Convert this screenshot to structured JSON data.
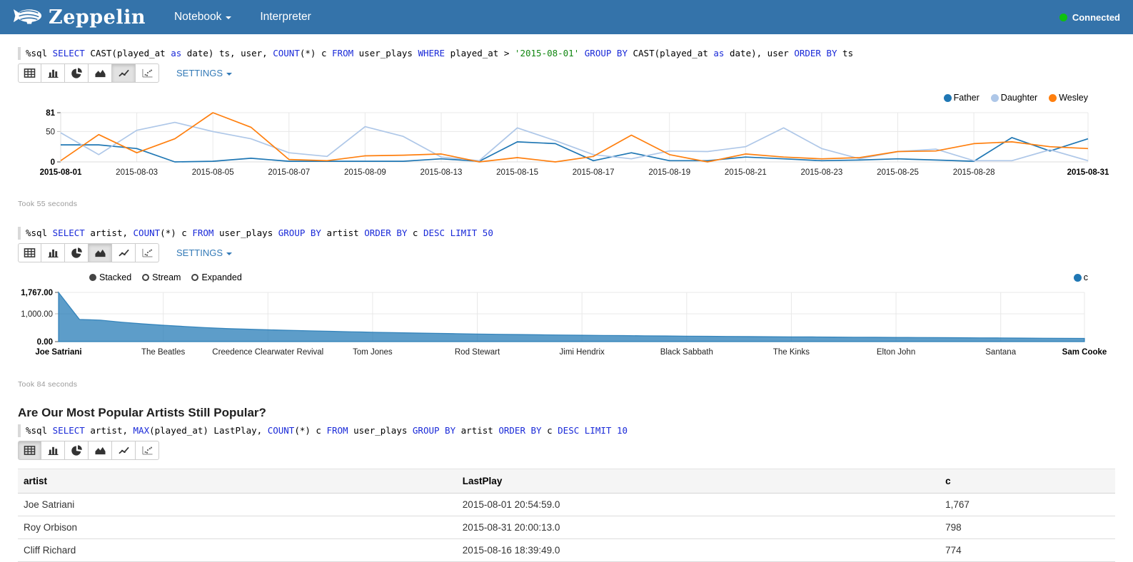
{
  "navbar": {
    "brand": "Zeppelin",
    "items": [
      {
        "label": "Notebook",
        "has_caret": true
      },
      {
        "label": "Interpreter",
        "has_caret": false
      }
    ],
    "status": {
      "label": "Connected",
      "color": "#0ec10e"
    }
  },
  "chart_type_buttons": [
    "table",
    "bar-chart",
    "pie-chart",
    "area-chart",
    "line-chart",
    "scatter-chart"
  ],
  "paragraphs": [
    {
      "query_tokens": [
        {
          "t": "%sql ",
          "c": "plain"
        },
        {
          "t": "SELECT",
          "c": "kw"
        },
        {
          "t": " CAST(played_at ",
          "c": "plain"
        },
        {
          "t": "as",
          "c": "kw"
        },
        {
          "t": " date) ts, user, ",
          "c": "plain"
        },
        {
          "t": "COUNT",
          "c": "kw"
        },
        {
          "t": "(*) c ",
          "c": "plain"
        },
        {
          "t": "FROM",
          "c": "kw"
        },
        {
          "t": " user_plays ",
          "c": "plain"
        },
        {
          "t": "WHERE",
          "c": "kw"
        },
        {
          "t": " played_at > ",
          "c": "plain"
        },
        {
          "t": "'2015-08-01'",
          "c": "str"
        },
        {
          "t": " ",
          "c": "plain"
        },
        {
          "t": "GROUP BY",
          "c": "kw"
        },
        {
          "t": " CAST(played_at ",
          "c": "plain"
        },
        {
          "t": "as",
          "c": "kw"
        },
        {
          "t": " date), user ",
          "c": "plain"
        },
        {
          "t": "ORDER BY",
          "c": "kw"
        },
        {
          "t": " ts",
          "c": "plain"
        }
      ],
      "toolbar": {
        "selected": "line-chart",
        "settings_label": "SETTINGS",
        "has_settings": true
      },
      "took": "Took 55 seconds",
      "chart_index": 0
    },
    {
      "query_tokens": [
        {
          "t": "%sql ",
          "c": "plain"
        },
        {
          "t": "SELECT",
          "c": "kw"
        },
        {
          "t": " artist, ",
          "c": "plain"
        },
        {
          "t": "COUNT",
          "c": "kw"
        },
        {
          "t": "(*) c ",
          "c": "plain"
        },
        {
          "t": "FROM",
          "c": "kw"
        },
        {
          "t": " user_plays ",
          "c": "plain"
        },
        {
          "t": "GROUP BY",
          "c": "kw"
        },
        {
          "t": " artist ",
          "c": "plain"
        },
        {
          "t": "ORDER BY",
          "c": "kw"
        },
        {
          "t": " c ",
          "c": "plain"
        },
        {
          "t": "DESC",
          "c": "kw"
        },
        {
          "t": " ",
          "c": "plain"
        },
        {
          "t": "LIMIT",
          "c": "kw"
        },
        {
          "t": " ",
          "c": "plain"
        },
        {
          "t": "50",
          "c": "num"
        }
      ],
      "toolbar": {
        "selected": "area-chart",
        "settings_label": "SETTINGS",
        "has_settings": true
      },
      "took": "Took 84 seconds",
      "chart_index": 1
    },
    {
      "title": "Are Our Most Popular Artists Still Popular?",
      "query_tokens": [
        {
          "t": "%sql ",
          "c": "plain"
        },
        {
          "t": "SELECT",
          "c": "kw"
        },
        {
          "t": " artist, ",
          "c": "plain"
        },
        {
          "t": "MAX",
          "c": "kw"
        },
        {
          "t": "(played_at) LastPlay, ",
          "c": "plain"
        },
        {
          "t": "COUNT",
          "c": "kw"
        },
        {
          "t": "(*) c ",
          "c": "plain"
        },
        {
          "t": "FROM",
          "c": "kw"
        },
        {
          "t": " user_plays ",
          "c": "plain"
        },
        {
          "t": "GROUP BY",
          "c": "kw"
        },
        {
          "t": " artist ",
          "c": "plain"
        },
        {
          "t": "ORDER BY",
          "c": "kw"
        },
        {
          "t": " c ",
          "c": "plain"
        },
        {
          "t": "DESC",
          "c": "kw"
        },
        {
          "t": " ",
          "c": "plain"
        },
        {
          "t": "LIMIT",
          "c": "kw"
        },
        {
          "t": " ",
          "c": "plain"
        },
        {
          "t": "10",
          "c": "num"
        }
      ],
      "toolbar": {
        "selected": "table",
        "has_settings": false
      },
      "table": {
        "columns": [
          "artist",
          "LastPlay",
          "c"
        ],
        "rows": [
          [
            "Joe Satriani",
            "2015-08-01 20:54:59.0",
            "1,767"
          ],
          [
            "Roy Orbison",
            "2015-08-31 20:00:13.0",
            "798"
          ],
          [
            "Cliff Richard",
            "2015-08-16 18:39:49.0",
            "774"
          ]
        ]
      }
    }
  ],
  "chart_data": [
    {
      "type": "line",
      "n_points": 28,
      "ylim": [
        0,
        81
      ],
      "grid": true,
      "legend_position": "top-right",
      "y_ticks": [
        {
          "value": 0,
          "label": "0",
          "bold": true
        },
        {
          "value": 50,
          "label": "50",
          "bold": false
        },
        {
          "value": 81,
          "label": "81",
          "bold": true
        }
      ],
      "x_ticks": [
        {
          "i": 0,
          "label": "2015-08-01",
          "bold": true
        },
        {
          "i": 2,
          "label": "2015-08-03",
          "bold": false
        },
        {
          "i": 4,
          "label": "2015-08-05",
          "bold": false
        },
        {
          "i": 6,
          "label": "2015-08-07",
          "bold": false
        },
        {
          "i": 8,
          "label": "2015-08-09",
          "bold": false
        },
        {
          "i": 10,
          "label": "2015-08-13",
          "bold": false
        },
        {
          "i": 12,
          "label": "2015-08-15",
          "bold": false
        },
        {
          "i": 14,
          "label": "2015-08-17",
          "bold": false
        },
        {
          "i": 16,
          "label": "2015-08-19",
          "bold": false
        },
        {
          "i": 18,
          "label": "2015-08-21",
          "bold": false
        },
        {
          "i": 20,
          "label": "2015-08-23",
          "bold": false
        },
        {
          "i": 22,
          "label": "2015-08-25",
          "bold": false
        },
        {
          "i": 24,
          "label": "2015-08-28",
          "bold": false
        },
        {
          "i": 27,
          "label": "2015-08-31",
          "bold": true
        }
      ],
      "series": [
        {
          "name": "Father",
          "color": "#1f77b4",
          "values": [
            28,
            28,
            22,
            0,
            1,
            6,
            1,
            1,
            1,
            1,
            5,
            1,
            33,
            30,
            2,
            15,
            2,
            2,
            8,
            5,
            2,
            3,
            5,
            3,
            1,
            40,
            18,
            38
          ]
        },
        {
          "name": "Daughter",
          "color": "#aec7e8",
          "values": [
            48,
            12,
            52,
            65,
            50,
            38,
            15,
            9,
            58,
            42,
            8,
            2,
            56,
            35,
            12,
            5,
            18,
            17,
            25,
            56,
            22,
            5,
            17,
            21,
            2,
            2,
            20,
            2
          ]
        },
        {
          "name": "Wesley",
          "color": "#ff7f0e",
          "values": [
            2,
            45,
            15,
            38,
            81,
            57,
            4,
            2,
            10,
            11,
            13,
            0,
            7,
            0,
            9,
            44,
            12,
            0,
            13,
            8,
            5,
            7,
            17,
            18,
            30,
            33,
            25,
            22
          ]
        }
      ]
    },
    {
      "type": "area",
      "mode_controls": {
        "options": [
          "Stacked",
          "Stream",
          "Expanded"
        ],
        "selected": "Stacked"
      },
      "n_points": 50,
      "ylim": [
        0,
        1767
      ],
      "grid": true,
      "legend_position": "top-right",
      "y_ticks": [
        {
          "value": 0,
          "label": "0.00",
          "bold": true
        },
        {
          "value": 1000,
          "label": "1,000.00",
          "bold": false
        },
        {
          "value": 1767,
          "label": "1,767.00",
          "bold": true
        }
      ],
      "x_ticks": [
        {
          "i": 0,
          "label": "Joe Satriani",
          "bold": true
        },
        {
          "i": 5,
          "label": "The Beatles",
          "bold": false
        },
        {
          "i": 10,
          "label": "Creedence Clearwater Revival",
          "bold": false
        },
        {
          "i": 15,
          "label": "Tom Jones",
          "bold": false
        },
        {
          "i": 20,
          "label": "Rod Stewart",
          "bold": false
        },
        {
          "i": 25,
          "label": "Jimi Hendrix",
          "bold": false
        },
        {
          "i": 30,
          "label": "Black Sabbath",
          "bold": false
        },
        {
          "i": 35,
          "label": "The Kinks",
          "bold": false
        },
        {
          "i": 40,
          "label": "Elton John",
          "bold": false
        },
        {
          "i": 45,
          "label": "Santana",
          "bold": false
        },
        {
          "i": 49,
          "label": "Sam Cooke",
          "bold": true
        }
      ],
      "series": [
        {
          "name": "c",
          "color": "#1f77b4",
          "values": [
            1767,
            798,
            774,
            700,
            640,
            590,
            545,
            505,
            472,
            447,
            425,
            406,
            388,
            371,
            354,
            338,
            323,
            310,
            298,
            286,
            275,
            265,
            256,
            247,
            239,
            231,
            224,
            217,
            210,
            204,
            198,
            192,
            187,
            182,
            177,
            172,
            168,
            164,
            160,
            156,
            152,
            148,
            144,
            140,
            136,
            132,
            128,
            124,
            120,
            116
          ]
        }
      ]
    }
  ]
}
